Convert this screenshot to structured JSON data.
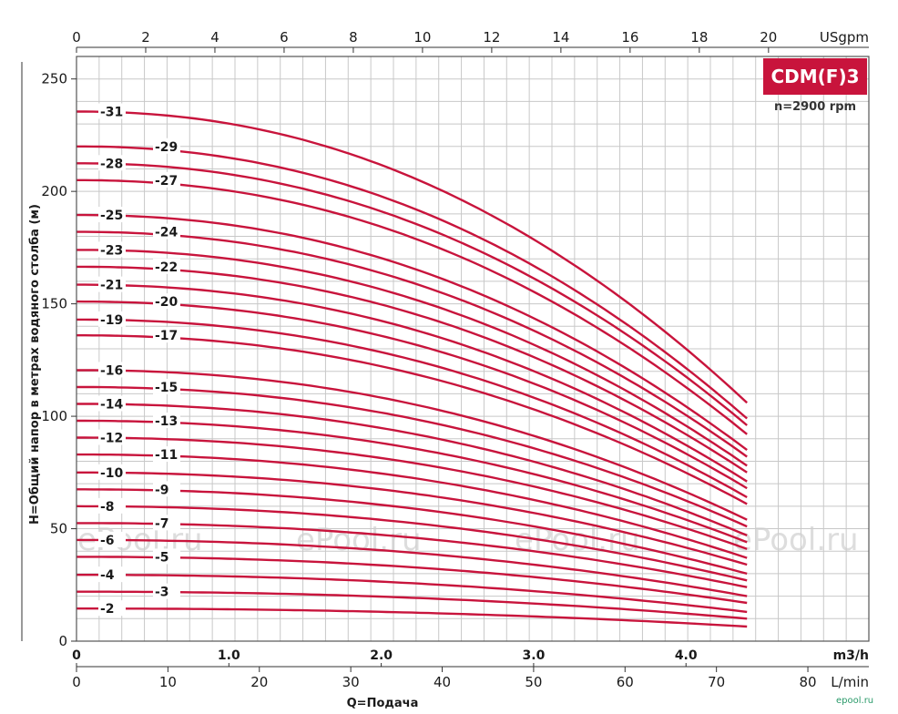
{
  "chart_data": {
    "type": "line",
    "badge": "CDM(F)3",
    "speed_note": "n=2900 rpm",
    "ylabel": "H=Общий напор в метрах водяного столба (м)",
    "xlabel": "Q=Подача",
    "y_axis": {
      "range": [
        0,
        260
      ],
      "ticks": [
        "0",
        "50",
        "100",
        "150",
        "200",
        "250"
      ]
    },
    "x_axis_m3h": {
      "unit": "m3/h",
      "range": [
        0,
        5.2
      ],
      "ticks": [
        "0",
        "1.0",
        "2.0",
        "3.0",
        "4.0"
      ]
    },
    "x_axis_lmin": {
      "unit": "L/min",
      "range": [
        0,
        86.67
      ],
      "ticks": [
        "0",
        "10",
        "20",
        "30",
        "40",
        "50",
        "60",
        "70",
        "80"
      ]
    },
    "x_axis_usgpm": {
      "unit": "USgpm",
      "range": [
        0,
        22.9
      ],
      "ticks": [
        "0",
        "2",
        "4",
        "6",
        "8",
        "10",
        "12",
        "14",
        "16",
        "18",
        "20"
      ]
    },
    "flow_max_m3h": 4.4,
    "grid": true,
    "series": [
      {
        "name": "-31",
        "h0": 235.5,
        "hmax": 106
      },
      {
        "name": "-29",
        "h0": 220,
        "hmax": 99
      },
      {
        "name": "-28",
        "h0": 212.5,
        "hmax": 96
      },
      {
        "name": "-27",
        "h0": 205,
        "hmax": 92
      },
      {
        "name": "-25",
        "h0": 189.5,
        "hmax": 85
      },
      {
        "name": "-24",
        "h0": 182,
        "hmax": 82
      },
      {
        "name": "-23",
        "h0": 174,
        "hmax": 78
      },
      {
        "name": "-22",
        "h0": 166.5,
        "hmax": 75
      },
      {
        "name": "-21",
        "h0": 158.5,
        "hmax": 71
      },
      {
        "name": "-20",
        "h0": 151,
        "hmax": 68
      },
      {
        "name": "-19",
        "h0": 143,
        "hmax": 64
      },
      {
        "name": "-17",
        "h0": 136,
        "hmax": 61
      },
      {
        "name": "-16",
        "h0": 120.5,
        "hmax": 54
      },
      {
        "name": "-15",
        "h0": 113,
        "hmax": 51
      },
      {
        "name": "-14",
        "h0": 105.5,
        "hmax": 47
      },
      {
        "name": "-13",
        "h0": 98,
        "hmax": 44
      },
      {
        "name": "-12",
        "h0": 90.5,
        "hmax": 41
      },
      {
        "name": "-11",
        "h0": 83,
        "hmax": 37
      },
      {
        "name": "-10",
        "h0": 75,
        "hmax": 34
      },
      {
        "name": "-9",
        "h0": 67.5,
        "hmax": 30
      },
      {
        "name": "-8",
        "h0": 60,
        "hmax": 27
      },
      {
        "name": "-7",
        "h0": 52.5,
        "hmax": 24
      },
      {
        "name": "-6",
        "h0": 45,
        "hmax": 20
      },
      {
        "name": "-5",
        "h0": 37.5,
        "hmax": 17
      },
      {
        "name": "-4",
        "h0": 29.5,
        "hmax": 13
      },
      {
        "name": "-3",
        "h0": 22,
        "hmax": 10
      },
      {
        "name": "-2",
        "h0": 14.5,
        "hmax": 6.5
      }
    ],
    "watermark": "ePool.ru",
    "site_credit": "epool.ru",
    "line_color": "#c8143c"
  }
}
